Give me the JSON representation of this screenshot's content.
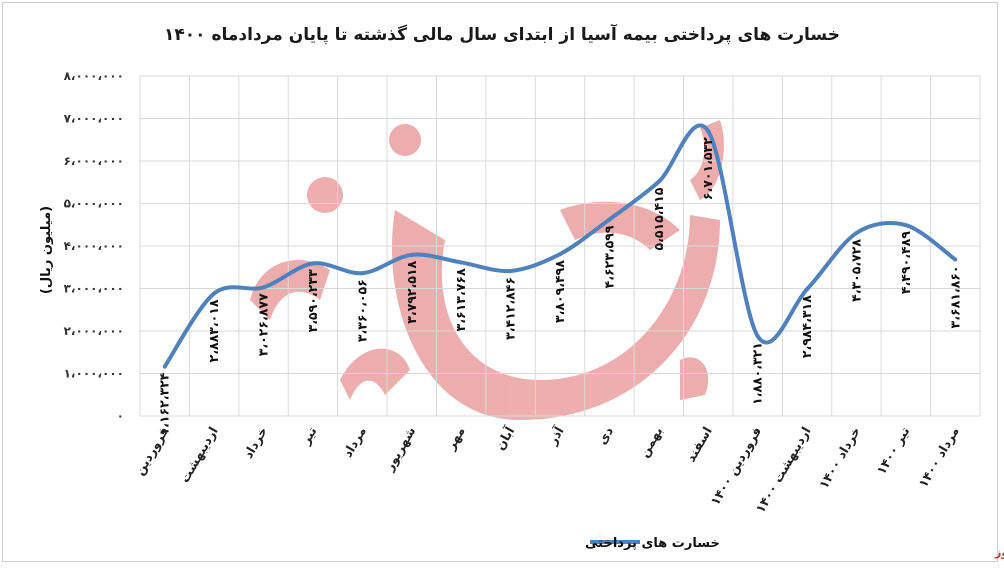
{
  "chart_data": {
    "type": "line",
    "title": "خسارت های پرداختی بیمه آسیا از ابتدای سال مالی گذشته تا پایان مردادماه ۱۴۰۰",
    "ylabel": "(میلیون ریال)",
    "ylim": [
      0,
      8000000
    ],
    "yticks": [
      0,
      1000000,
      2000000,
      3000000,
      4000000,
      5000000,
      6000000,
      7000000,
      8000000
    ],
    "ytick_labels": [
      "۰",
      "۱،۰۰۰،۰۰۰",
      "۲،۰۰۰،۰۰۰",
      "۳،۰۰۰،۰۰۰",
      "۴،۰۰۰،۰۰۰",
      "۵،۰۰۰،۰۰۰",
      "۶،۰۰۰،۰۰۰",
      "۷،۰۰۰،۰۰۰",
      "۸،۰۰۰،۰۰۰"
    ],
    "grid": true,
    "legend_position": "bottom",
    "categories": [
      "فروردین",
      "اردیبهشت",
      "خرداد",
      "تیر",
      "مرداد",
      "شهریور",
      "مهر",
      "آبان",
      "آذر",
      "دی",
      "بهمن",
      "اسفند",
      "فروردین ۱۴۰۰",
      "اردیبهشت ۱۴۰۰",
      "خرداد ۱۴۰۰",
      "تیر ۱۴۰۰",
      "مرداد ۱۴۰۰"
    ],
    "series": [
      {
        "name": "خسارت های پرداختی",
        "color": "#4f81bd",
        "values": [
          1162324,
          2883018,
          3026877,
          3590233,
          3360056,
          3792518,
          3613768,
          3412846,
          3809498,
          4623599,
          5515415,
          6701532,
          1880321,
          2984318,
          4305728,
          4490489,
          3681860
        ],
        "labels": [
          "۱،۱۶۲،۳۲۴",
          "۲،۸۸۳،۰۱۸",
          "۳،۰۲۶،۸۷۷",
          "۳،۵۹۰،۲۳۳",
          "۳،۳۶۰،۰۵۶",
          "۳،۷۹۲،۵۱۸",
          "۳،۶۱۳،۷۶۸",
          "۳،۴۱۲،۸۴۶",
          "۳،۸۰۹،۴۹۸",
          "۴،۶۲۳،۵۹۹",
          "۵،۵۱۵،۴۱۵",
          "۶،۷۰۱،۵۳۲",
          "۱،۸۸۰،۳۲۱",
          "۲،۹۸۴،۳۱۸",
          "۴،۳۰۵،۷۲۸",
          "۴،۴۹۰،۴۸۹",
          "۳،۶۸۱،۸۶۰"
        ]
      }
    ]
  },
  "watermark": {
    "text": "بورس نیوز",
    "color": "#e06b6b"
  },
  "source": {
    "text": "بورس نیوز"
  }
}
